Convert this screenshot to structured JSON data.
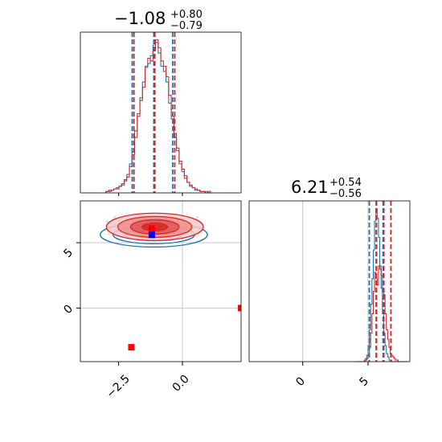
{
  "chart_data": {
    "type": "corner",
    "colors": {
      "series_a": "#d62728",
      "series_b": "#1f77b4",
      "marker_a": "#ff0000",
      "marker_b": "#0000ff",
      "grid": "#c8c8c8"
    },
    "panels": [
      {
        "id": "hist-param1",
        "type": "histogram",
        "title": {
          "value": "−1.08",
          "upper": "+0.80",
          "lower": "−0.79"
        },
        "xlim": [
          -4.0,
          2.3
        ],
        "quantiles": {
          "series_a": [
            -1.9,
            -1.08,
            -0.3
          ],
          "series_b": [
            -1.97,
            -1.12,
            -0.38
          ]
        },
        "histogram": {
          "bins": [
            -3.0,
            1.1,
            40
          ],
          "series_a": [
            1,
            1,
            2,
            3,
            3,
            5,
            6,
            9,
            12,
            20,
            29,
            42,
            58,
            70,
            80,
            95,
            102,
            100,
            108,
            116,
            110,
            100,
            96,
            88,
            74,
            58,
            45,
            34,
            24,
            18,
            13,
            8,
            6,
            4,
            3,
            2,
            1,
            1,
            0,
            1
          ],
          "series_b": [
            1,
            2,
            2,
            3,
            4,
            5,
            7,
            10,
            14,
            22,
            31,
            47,
            60,
            72,
            84,
            96,
            98,
            104,
            112,
            114,
            106,
            96,
            92,
            84,
            68,
            56,
            42,
            32,
            22,
            16,
            11,
            8,
            5,
            4,
            2,
            2,
            1,
            1,
            1,
            0
          ]
        }
      },
      {
        "id": "scatter-param1-param2",
        "type": "contour",
        "xlim": [
          -4.0,
          2.3
        ],
        "ylim": [
          -4.1,
          8.2
        ],
        "x_ticks": [
          "−2.5",
          "0.0"
        ],
        "y_ticks": [
          "0",
          "5"
        ],
        "reference_lines": {
          "x": 0.0,
          "y": [
            5.0,
            0.0
          ]
        },
        "series_a_center": [
          -1.08,
          6.21
        ],
        "series_b_center": [
          -1.12,
          5.62
        ],
        "markers": [
          {
            "series": "marker_a",
            "x": -1.2,
            "y": 6.1
          },
          {
            "series": "marker_a",
            "x": -2.0,
            "y": -3.0
          },
          {
            "series": "marker_a",
            "x": 2.3,
            "y": 0.0
          },
          {
            "series": "marker_b",
            "x": -1.2,
            "y": 5.6
          }
        ]
      },
      {
        "id": "hist-param2",
        "type": "histogram",
        "title": {
          "value": "6.21",
          "upper": "+0.54",
          "lower": "−0.56"
        },
        "xlim": [
          -4.1,
          8.2
        ],
        "x_ticks": [
          "0",
          "5"
        ],
        "reference_lines": {
          "x": [
            0.0,
            5.0
          ]
        },
        "quantiles": {
          "series_a": [
            5.65,
            6.21,
            6.75
          ],
          "series_b": [
            5.1,
            5.62,
            6.15
          ]
        },
        "histogram": {
          "bins": [
            4.0,
            8.0,
            40
          ],
          "series_a": [
            0,
            0,
            0,
            0,
            0,
            0,
            0,
            0,
            1,
            2,
            4,
            9,
            18,
            30,
            44,
            56,
            52,
            48,
            60,
            58,
            54,
            44,
            42,
            30,
            20,
            14,
            9,
            5,
            4,
            3,
            2,
            1,
            1,
            0,
            0,
            0,
            0,
            0,
            0,
            0
          ],
          "series_b": [
            0,
            0,
            0,
            0,
            0,
            0,
            0,
            1,
            2,
            4,
            10,
            20,
            36,
            52,
            70,
            88,
            96,
            90,
            78,
            60,
            46,
            30,
            18,
            10,
            5,
            3,
            1,
            1,
            0,
            0,
            0,
            0,
            0,
            0,
            0,
            0,
            0,
            0,
            0,
            0
          ]
        }
      }
    ]
  }
}
